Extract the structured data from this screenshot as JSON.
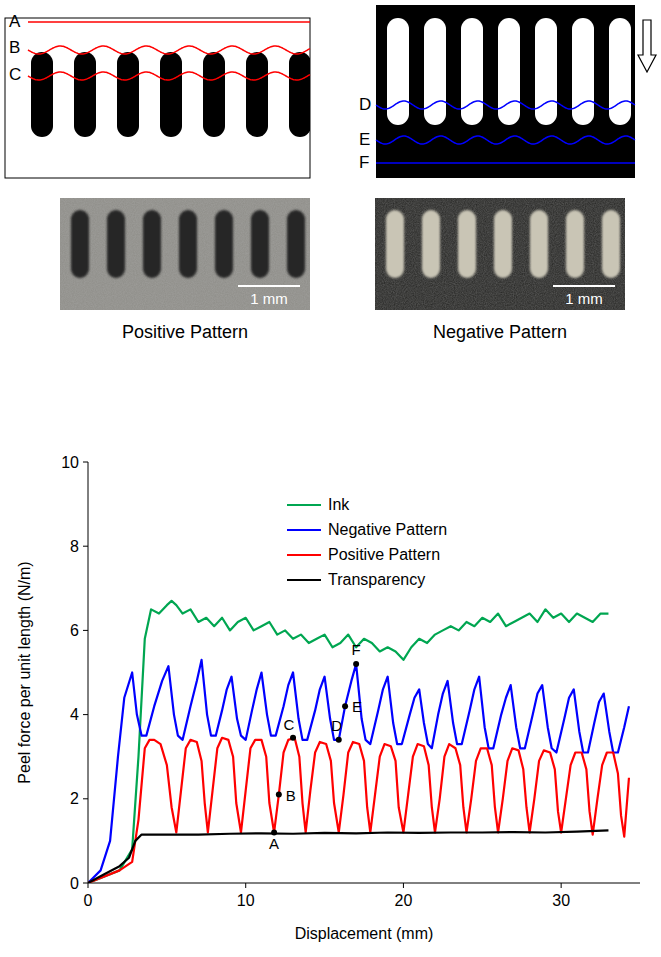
{
  "diagram": {
    "positive_pattern": {
      "line_labels": [
        "A",
        "B",
        "C"
      ],
      "scale_bar": "1 mm",
      "caption": "Positive Pattern"
    },
    "negative_pattern": {
      "line_labels": [
        "D",
        "E",
        "F"
      ],
      "scale_bar": "1 mm",
      "caption": "Negative Pattern"
    }
  },
  "chart_data": {
    "type": "line",
    "x_label": "Displacement (mm)",
    "y_label": "Peel force per unit length (N/m)",
    "xlim": [
      0,
      35
    ],
    "xticks": [
      0,
      10,
      20,
      30
    ],
    "ylim": [
      0,
      10
    ],
    "yticks": [
      0,
      2,
      4,
      6,
      8,
      10
    ],
    "grid": false,
    "legend": "top",
    "series": [
      {
        "name": "Ink",
        "color": "#00a651",
        "x": [
          0,
          1,
          2,
          2.8,
          3.2,
          3.6,
          4.0,
          4.5,
          5.0,
          5.3,
          5.6,
          6.0,
          6.5,
          7.0,
          7.5,
          8.0,
          8.5,
          9.0,
          9.5,
          10,
          10.5,
          11,
          11.5,
          12,
          12.5,
          13,
          13.5,
          14,
          14.5,
          15,
          15.5,
          16,
          16.5,
          17,
          17.5,
          18,
          18.5,
          19,
          19.5,
          20,
          20.5,
          21,
          21.5,
          22,
          22.5,
          23,
          23.5,
          24,
          24.5,
          25,
          25.5,
          26,
          26.5,
          27,
          27.5,
          28,
          28.5,
          29,
          29.5,
          30,
          30.5,
          31,
          31.5,
          32,
          32.5,
          33
        ],
        "values": [
          0,
          0.15,
          0.3,
          0.8,
          3.0,
          5.8,
          6.5,
          6.4,
          6.6,
          6.7,
          6.6,
          6.4,
          6.5,
          6.2,
          6.3,
          6.1,
          6.3,
          6.0,
          6.2,
          6.3,
          6.0,
          6.1,
          6.2,
          5.9,
          6.0,
          5.8,
          5.9,
          5.7,
          5.8,
          5.9,
          5.6,
          5.7,
          5.9,
          5.6,
          5.8,
          5.7,
          5.5,
          5.6,
          5.5,
          5.3,
          5.6,
          5.8,
          5.7,
          5.9,
          6.0,
          6.1,
          6.0,
          6.2,
          6.1,
          6.3,
          6.2,
          6.4,
          6.1,
          6.2,
          6.3,
          6.4,
          6.2,
          6.5,
          6.3,
          6.4,
          6.2,
          6.4,
          6.3,
          6.2,
          6.4,
          6.4
        ]
      },
      {
        "name": "Negative Pattern",
        "color": "#0000ff",
        "x": [
          0,
          0.8,
          1.4,
          1.9,
          2.3,
          2.8,
          3.1,
          3.4,
          3.7,
          4.2,
          4.7,
          5.1,
          5.45,
          5.7,
          6.0,
          6.5,
          6.9,
          7.2,
          7.55,
          7.8,
          8.1,
          8.5,
          8.8,
          9.1,
          9.45,
          9.7,
          10.0,
          10.4,
          10.7,
          11.0,
          11.35,
          11.6,
          11.9,
          12.4,
          12.7,
          13.0,
          13.35,
          13.6,
          13.9,
          14.4,
          14.7,
          15.0,
          15.35,
          15.6,
          15.9,
          16.3,
          16.7,
          17.0,
          17.35,
          17.6,
          17.9,
          18.4,
          18.7,
          19.0,
          19.35,
          19.6,
          19.9,
          20.4,
          20.7,
          21.0,
          21.3,
          21.55,
          21.8,
          22.2,
          22.5,
          22.8,
          23.15,
          23.4,
          23.7,
          24.2,
          24.5,
          24.8,
          25.15,
          25.4,
          25.7,
          26.2,
          26.5,
          26.8,
          27.15,
          27.4,
          27.7,
          28.2,
          28.5,
          28.8,
          29.15,
          29.4,
          29.7,
          30.2,
          30.5,
          30.8,
          31.15,
          31.4,
          31.7,
          32.1,
          32.4,
          32.7,
          33.05,
          33.3,
          33.6,
          34.0,
          34.3
        ],
        "values": [
          0,
          0.3,
          1.0,
          3.0,
          4.4,
          5.0,
          4.0,
          3.5,
          3.5,
          4.2,
          4.8,
          5.15,
          4.0,
          3.5,
          3.4,
          4.2,
          4.8,
          5.3,
          4.0,
          3.5,
          3.5,
          4.1,
          4.6,
          4.9,
          3.9,
          3.5,
          3.4,
          4.1,
          4.6,
          5.0,
          4.0,
          3.5,
          3.5,
          4.2,
          4.7,
          5.0,
          3.9,
          3.4,
          3.4,
          4.1,
          4.6,
          4.9,
          3.9,
          3.4,
          3.4,
          4.2,
          4.8,
          5.2,
          3.9,
          3.4,
          3.3,
          4.1,
          4.6,
          4.9,
          3.8,
          3.3,
          3.3,
          4.0,
          4.4,
          4.6,
          3.8,
          3.3,
          3.2,
          4.0,
          4.5,
          4.8,
          3.8,
          3.3,
          3.3,
          4.1,
          4.6,
          4.9,
          3.7,
          3.2,
          3.2,
          4.0,
          4.4,
          4.7,
          3.7,
          3.2,
          3.2,
          4.0,
          4.5,
          4.7,
          3.7,
          3.2,
          3.1,
          3.9,
          4.4,
          4.6,
          3.6,
          3.1,
          3.1,
          3.8,
          4.3,
          4.5,
          3.6,
          3.1,
          3.1,
          3.7,
          4.2
        ]
      },
      {
        "name": "Positive Pattern",
        "color": "#ff0000",
        "x": [
          0,
          1,
          2,
          2.8,
          3.2,
          3.6,
          3.9,
          4.2,
          4.6,
          5.0,
          5.3,
          5.6,
          5.9,
          6.2,
          6.5,
          6.9,
          7.2,
          7.4,
          7.6,
          7.9,
          8.2,
          8.5,
          8.9,
          9.2,
          9.4,
          9.7,
          10.0,
          10.3,
          10.6,
          11.0,
          11.3,
          11.5,
          11.8,
          12.1,
          12.4,
          12.7,
          13.1,
          13.4,
          13.6,
          13.8,
          14.1,
          14.4,
          14.7,
          15.1,
          15.4,
          15.6,
          15.9,
          16.2,
          16.5,
          16.8,
          17.2,
          17.5,
          17.7,
          17.9,
          18.2,
          18.5,
          18.8,
          19.2,
          19.5,
          19.7,
          20.0,
          20.3,
          20.6,
          20.9,
          21.3,
          21.6,
          21.8,
          22.0,
          22.3,
          22.6,
          22.9,
          23.3,
          23.6,
          23.8,
          24.0,
          24.3,
          24.6,
          24.9,
          25.3,
          25.6,
          25.8,
          26.0,
          26.3,
          26.6,
          26.9,
          27.3,
          27.6,
          27.8,
          28.0,
          28.3,
          28.6,
          28.9,
          29.3,
          29.6,
          29.8,
          30.0,
          30.3,
          30.6,
          30.9,
          31.3,
          31.6,
          31.8,
          32.0,
          32.3,
          32.6,
          32.9,
          33.3,
          33.6,
          33.8,
          34.0,
          34.3
        ],
        "values": [
          0,
          0.15,
          0.3,
          0.5,
          1.5,
          3.2,
          3.4,
          3.4,
          3.3,
          2.8,
          1.8,
          1.2,
          2.2,
          3.2,
          3.4,
          3.35,
          2.9,
          1.9,
          1.2,
          2.2,
          3.2,
          3.45,
          3.4,
          3.0,
          1.9,
          1.2,
          2.2,
          3.2,
          3.4,
          3.4,
          3.0,
          1.9,
          1.2,
          2.1,
          3.1,
          3.4,
          3.45,
          3.0,
          1.9,
          1.2,
          2.2,
          3.1,
          3.35,
          3.3,
          2.9,
          1.9,
          1.2,
          2.1,
          3.1,
          3.35,
          3.3,
          2.9,
          1.8,
          1.2,
          2.1,
          3.0,
          3.3,
          3.25,
          2.9,
          1.8,
          1.2,
          2.1,
          3.0,
          3.3,
          3.25,
          2.8,
          1.8,
          1.2,
          2.0,
          3.0,
          3.3,
          3.2,
          2.8,
          1.8,
          1.2,
          2.0,
          2.9,
          3.2,
          3.2,
          2.8,
          1.8,
          1.2,
          2.0,
          2.9,
          3.2,
          3.15,
          2.7,
          1.8,
          1.2,
          2.0,
          2.9,
          3.15,
          3.1,
          2.7,
          1.7,
          1.2,
          2.0,
          2.8,
          3.1,
          3.1,
          2.7,
          1.7,
          1.15,
          2.0,
          2.8,
          3.1,
          3.1,
          2.6,
          1.6,
          1.1,
          2.5
        ]
      },
      {
        "name": "Transparency",
        "color": "#000000",
        "x": [
          0,
          1,
          2,
          2.6,
          3.0,
          3.4,
          3.8,
          5,
          7,
          9,
          11,
          13,
          15,
          17,
          19,
          21,
          23,
          25,
          27,
          29,
          31,
          33
        ],
        "values": [
          0,
          0.2,
          0.4,
          0.6,
          1.0,
          1.15,
          1.15,
          1.15,
          1.15,
          1.17,
          1.18,
          1.17,
          1.19,
          1.18,
          1.2,
          1.19,
          1.2,
          1.2,
          1.21,
          1.2,
          1.22,
          1.25
        ]
      }
    ],
    "annotations": [
      {
        "label": "A",
        "x": 11.8,
        "y": 1.2
      },
      {
        "label": "B",
        "x": 12.1,
        "y": 2.1
      },
      {
        "label": "C",
        "x": 13.0,
        "y": 3.45
      },
      {
        "label": "D",
        "x": 15.9,
        "y": 3.4
      },
      {
        "label": "E",
        "x": 16.3,
        "y": 4.2
      },
      {
        "label": "F",
        "x": 17.0,
        "y": 5.2
      }
    ]
  }
}
